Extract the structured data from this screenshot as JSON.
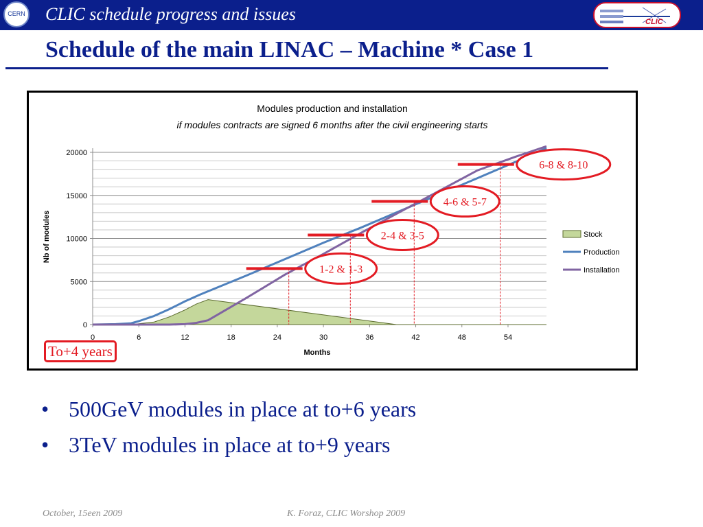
{
  "header": {
    "title": "CLIC schedule progress and issues",
    "cern_logo_text": "CERN",
    "clic_logo_text": "CLIC"
  },
  "slide_title": "Schedule of the main LINAC – Machine * Case 1",
  "chart_data": {
    "type": "area",
    "title": "Modules production and installation",
    "subtitle": "if modules contracts are signed 6 months after the civil engineering starts",
    "xlabel": "Months",
    "ylabel": "Nb of modules",
    "xlim": [
      0,
      59
    ],
    "ylim": [
      0,
      20000
    ],
    "xticks": [
      0,
      6,
      12,
      18,
      24,
      30,
      36,
      42,
      48,
      54
    ],
    "yticks": [
      0,
      5000,
      10000,
      15000,
      20000
    ],
    "grid": true,
    "legend_position": "right",
    "series": [
      {
        "name": "Stock",
        "type": "area",
        "color": "#c4d79b",
        "x": [
          0,
          5,
          8,
          10,
          12,
          13.5,
          15,
          39.5,
          59
        ],
        "y": [
          0,
          0,
          300,
          900,
          1700,
          2400,
          2900,
          0,
          0
        ]
      },
      {
        "name": "Production",
        "type": "line",
        "color": "#4f81bd",
        "x": [
          0,
          3,
          5,
          6,
          8,
          10,
          12,
          14,
          20,
          25,
          30,
          35,
          40,
          45,
          50,
          55,
          59
        ],
        "y": [
          0,
          50,
          150,
          400,
          1000,
          1800,
          2700,
          3500,
          5700,
          7600,
          9500,
          11300,
          13200,
          15100,
          17000,
          18900,
          20500
        ]
      },
      {
        "name": "Installation",
        "type": "line",
        "color": "#8064a2",
        "x": [
          0,
          10,
          12,
          13.5,
          15,
          20,
          25,
          30,
          35,
          40,
          45,
          50,
          55,
          59
        ],
        "y": [
          0,
          0,
          50,
          200,
          500,
          3100,
          5800,
          8200,
          10700,
          13100,
          15500,
          17900,
          19500,
          20700
        ]
      }
    ],
    "annotations": [
      {
        "label": "1-2 & 1-3",
        "month": 25.5,
        "value": 6500
      },
      {
        "label": "2-4 & 3-5",
        "month": 33.5,
        "value": 10400
      },
      {
        "label": "4-6 & 5-7",
        "month": 41.8,
        "value": 14300
      },
      {
        "label": "6-8 & 8-10",
        "month": 53,
        "value": 18600
      }
    ],
    "start_label": "To+4 years"
  },
  "bullets": [
    "500GeV modules in place at to+6 years",
    "3TeV modules in place at to+9 years"
  ],
  "bullet_symbol": "•",
  "footer": {
    "date": "October, 15een 2009",
    "author": "K. Foraz, CLIC Worshop 2009"
  },
  "colors": {
    "accent": "#0b1f8c",
    "highlight": "#e31b23"
  }
}
